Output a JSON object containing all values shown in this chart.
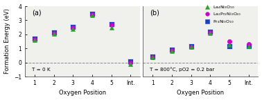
{
  "panel_a": {
    "label": "(a)",
    "annotation": "T = 0 K",
    "x_positions": [
      1,
      2,
      3,
      4,
      5,
      6
    ],
    "x_tick_labels": [
      "1",
      "2",
      "3",
      "4",
      "5",
      "Int."
    ],
    "series": {
      "La4Ni3O10": [
        1.6,
        2.02,
        2.4,
        3.38,
        2.5,
        -0.1
      ],
      "La2Pr2Ni3O10": [
        1.65,
        2.08,
        2.47,
        3.42,
        2.67,
        -0.04
      ],
      "Pr4Ni3O10": [
        1.7,
        2.16,
        2.53,
        3.47,
        2.75,
        0.06
      ]
    }
  },
  "panel_b": {
    "label": "(b)",
    "annotation": "T = 800°C, pO2 = 0.2 bar",
    "x_positions": [
      1,
      2,
      3,
      4,
      5,
      6
    ],
    "x_tick_labels": [
      "1",
      "2",
      "3",
      "4",
      "5",
      "Int."
    ],
    "series": {
      "La4Ni3O10": [
        0.35,
        0.8,
        1.1,
        2.1,
        1.28,
        1.18
      ],
      "La2Pr2Ni3O10": [
        0.38,
        0.85,
        1.13,
        2.13,
        1.5,
        1.32
      ],
      "Pr4Ni3O10": [
        0.4,
        0.92,
        1.18,
        2.2,
        1.15,
        1.15
      ]
    }
  },
  "colors": {
    "La4Ni3O10": "#2ca02c",
    "La2Pr2Ni3O10": "#cc00cc",
    "Pr4Ni3O10": "#1a3fc4"
  },
  "markers": {
    "La4Ni3O10": "^",
    "La2Pr2Ni3O10": "o",
    "Pr4Ni3O10": "s"
  },
  "markersizes": {
    "La4Ni3O10": 4.5,
    "La2Pr2Ni3O10": 4.5,
    "Pr4Ni3O10": 5.5
  },
  "zorders": {
    "La4Ni3O10": 4,
    "La2Pr2Ni3O10": 3,
    "Pr4Ni3O10": 2
  },
  "legend_labels": {
    "La4Ni3O10": "La$_4$Ni$_3$O$_{10}$",
    "La2Pr2Ni3O10": "La$_2$Pr$_2$Ni$_3$O$_{10}$",
    "Pr4Ni3O10": "Pr$_4$Ni$_3$O$_{10}$"
  },
  "ylabel": "Formation Energy (eV)",
  "xlabel": "Oxygen Position",
  "ylim": [
    -1,
    4
  ],
  "yticks": [
    -1,
    0,
    1,
    2,
    3,
    4
  ],
  "background_color": "#ffffff",
  "plot_bg_color": "#f0f0ec"
}
